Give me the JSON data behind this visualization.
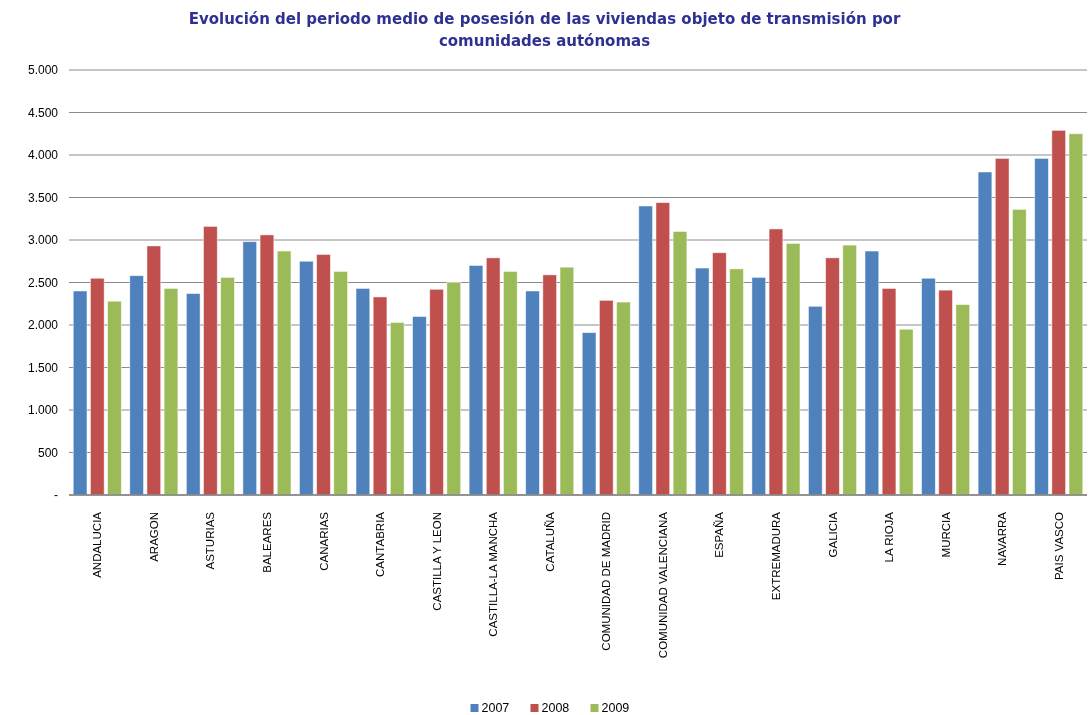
{
  "chart_data": {
    "type": "bar",
    "title": "Evolución del periodo medio de posesión de las viviendas objeto de transmisión por comunidades autónomas",
    "categories": [
      "ANDALUCIA",
      "ARAGON",
      "ASTURIAS",
      "BALEARES",
      "CANARIAS",
      "CANTABRIA",
      "CASTILLA Y LEON",
      "CASTILLA-LA MANCHA",
      "CATALUÑA",
      "COMUNIDAD DE MADRID",
      "COMUNIDAD  VALENCIANA",
      "ESPAÑA",
      "EXTREMADURA",
      "GALICIA",
      "LA RIOJA",
      "MURCIA",
      "NAVARRA",
      "PAIS VASCO"
    ],
    "series": [
      {
        "name": "2007",
        "color": "#4f81bd",
        "values": [
          2400,
          2580,
          2370,
          2980,
          2750,
          2430,
          2100,
          2700,
          2400,
          1910,
          3400,
          2670,
          2560,
          2220,
          2870,
          2550,
          3800,
          3960
        ]
      },
      {
        "name": "2008",
        "color": "#c0504d",
        "values": [
          2550,
          2930,
          3160,
          3060,
          2830,
          2330,
          2420,
          2790,
          2590,
          2290,
          3440,
          2850,
          3130,
          2790,
          2430,
          2410,
          3960,
          4290
        ]
      },
      {
        "name": "2009",
        "color": "#9bbb59",
        "values": [
          2280,
          2430,
          2560,
          2870,
          2630,
          2030,
          2500,
          2630,
          2680,
          2270,
          3100,
          2660,
          2960,
          2940,
          1950,
          2240,
          3360,
          4250
        ]
      }
    ],
    "ylim": [
      0,
      5000
    ],
    "yticks": [
      {
        "value": 0,
        "label": "-"
      },
      500,
      {
        "value": 1000,
        "label": "1.000"
      },
      {
        "value": 1500,
        "label": "1.500"
      },
      {
        "value": 2000,
        "label": "2.000"
      },
      {
        "value": 2500,
        "label": "2.500"
      },
      {
        "value": 3000,
        "label": "3.000"
      },
      {
        "value": 3500,
        "label": "3.500"
      },
      {
        "value": 4000,
        "label": "4.000"
      },
      {
        "value": 4500,
        "label": "4.500"
      },
      {
        "value": 5000,
        "label": "5.000"
      }
    ],
    "grid": "y",
    "legend": "bottom"
  }
}
